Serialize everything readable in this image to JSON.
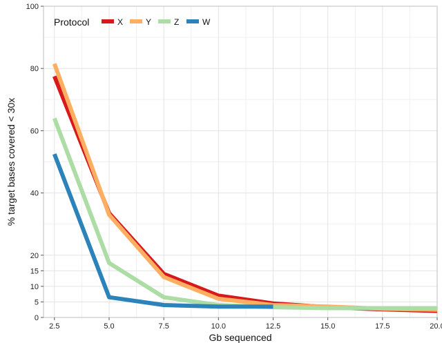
{
  "chart_data": {
    "type": "line",
    "xlabel": "Gb sequenced",
    "ylabel": "% target bases covered < 30x",
    "xlim": [
      2.0,
      20.0
    ],
    "ylim": [
      0,
      100
    ],
    "x_ticks": [
      "2.5",
      "5.0",
      "7.5",
      "10.0",
      "12.5",
      "15.0",
      "17.5",
      "20.0"
    ],
    "y_ticks": [
      "0",
      "5",
      "10",
      "15",
      "20",
      "40",
      "60",
      "80",
      "100"
    ],
    "grid": true,
    "legend": {
      "title": "Protocol",
      "position": "top-left"
    },
    "series": [
      {
        "name": "X",
        "color": "#d7191c",
        "x": [
          2.5,
          5.0,
          7.5,
          10.0,
          12.5,
          15.0,
          17.5,
          20.0
        ],
        "y": [
          77.5,
          33.5,
          14.0,
          7.0,
          4.5,
          3.3,
          2.6,
          2.1
        ]
      },
      {
        "name": "Y",
        "color": "#fdae61",
        "x": [
          2.5,
          5.0,
          7.5,
          10.0,
          12.5,
          15.0,
          17.5,
          20.0
        ],
        "y": [
          81.5,
          33.0,
          13.0,
          6.0,
          4.0,
          3.5,
          2.8,
          2.5
        ]
      },
      {
        "name": "Z",
        "color": "#abdda4",
        "x": [
          2.5,
          5.0,
          7.5,
          10.0,
          12.5,
          15.0,
          17.5,
          20.0
        ],
        "y": [
          64.0,
          17.5,
          6.5,
          4.0,
          3.3,
          3.0,
          3.0,
          3.0
        ]
      },
      {
        "name": "W",
        "color": "#2b83ba",
        "x": [
          2.5,
          5.0,
          7.5,
          10.0,
          12.5
        ],
        "y": [
          52.5,
          6.5,
          4.0,
          3.5,
          3.5
        ]
      }
    ]
  }
}
